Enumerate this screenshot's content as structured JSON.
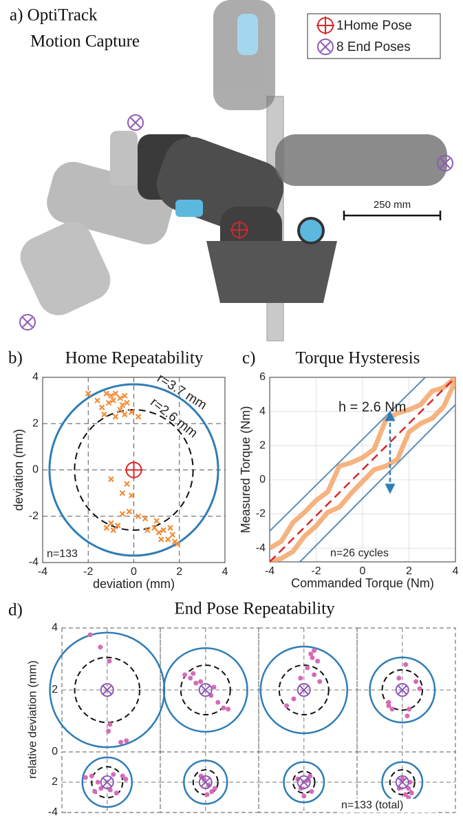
{
  "photo_panel": {
    "title_lines": [
      "a) OptiTrack",
      "Motion Capture"
    ],
    "legend": [
      "1Home Pose",
      "8 End Poses"
    ],
    "scale_bar": "250 mm"
  },
  "chart_data": [
    {
      "type": "scatter",
      "panel": "b)",
      "title": "Home Repeatability",
      "xlabel": "deviation (mm)",
      "ylabel": "deviation (mm)",
      "xlim": [
        -4,
        4
      ],
      "ylim": [
        -4,
        4
      ],
      "xticks": [
        -4,
        -2,
        0,
        2,
        4
      ],
      "yticks": [
        -4,
        -2,
        0,
        2,
        4
      ],
      "grid": true,
      "color": "#f28c38",
      "x": [
        -2.0,
        -1.6,
        -1.2,
        -1.0,
        -0.8,
        -0.6,
        -0.4,
        -0.3,
        -1.1,
        -0.9,
        -0.5,
        -0.1,
        -1.3,
        -0.8,
        -0.4,
        0.2,
        -0.6,
        -1.4,
        -0.3,
        -0.1,
        -1.0,
        -0.5,
        -1.2,
        -1.0,
        -0.7,
        -0.5,
        -0.2,
        0.2,
        0.5,
        0.9,
        1.1,
        1.3,
        1.5,
        1.7,
        1.8,
        1.9,
        0.6,
        1.2,
        -0.9,
        1.0,
        1.6
      ],
      "y": [
        3.3,
        3.0,
        3.3,
        3.2,
        3.3,
        3.1,
        3.2,
        2.9,
        2.9,
        3.0,
        2.8,
        2.5,
        2.4,
        2.3,
        2.4,
        2.3,
        2.6,
        2.7,
        -0.6,
        -1.1,
        -0.4,
        -1.0,
        -2.5,
        -2.3,
        -2.4,
        -1.9,
        -1.8,
        -2.0,
        -2.1,
        -2.5,
        -2.7,
        -2.6,
        -3.0,
        -2.8,
        -3.1,
        -3.2,
        -2.6,
        -3.0,
        -2.6,
        -2.2,
        -2.5
      ],
      "circles": [
        {
          "r": 3.7,
          "label": "r=3.7 mm",
          "color": "#2f7db6",
          "style": "solid"
        },
        {
          "r": 2.6,
          "label": "r=2.6 mm",
          "color": "#111111",
          "style": "dashed"
        }
      ],
      "annotation": "n=133"
    },
    {
      "type": "line",
      "panel": "c)",
      "title": "Torque Hysteresis",
      "xlabel": "Commanded Torque (Nm)",
      "ylabel": "Measured Torque (Nm)",
      "xlim": [
        -4,
        4
      ],
      "ylim": [
        -4.8,
        6
      ],
      "xticks": [
        -4,
        -2,
        0,
        2,
        4
      ],
      "yticks": [
        -4,
        -2,
        0,
        2,
        4,
        6
      ],
      "grid": true,
      "series": [
        {
          "color": "#f5a66a",
          "style": "band",
          "x": [
            -4,
            -3.5,
            -3,
            -2.5,
            -2,
            -1.5,
            -1,
            -0.5,
            0,
            0.5,
            1,
            1.5,
            2,
            2.5,
            3,
            3.5,
            4
          ],
          "values": [
            -4.0,
            -3.6,
            -2.5,
            -1.9,
            -1.2,
            -0.7,
            0.8,
            1.0,
            1.3,
            1.8,
            3.5,
            3.9,
            4.1,
            4.4,
            5.2,
            5.4,
            6.0
          ]
        },
        {
          "color": "#f5a66a",
          "style": "band",
          "x": [
            -4,
            -3.5,
            -3,
            -2.5,
            -2,
            -1.5,
            -1,
            -0.5,
            0,
            0.5,
            1,
            1.5,
            2,
            2.5,
            3,
            3.5,
            4
          ],
          "values": [
            -4.8,
            -4.6,
            -4.2,
            -3.3,
            -2.7,
            -1.9,
            -1.6,
            -0.8,
            -0.1,
            0.6,
            0.8,
            1.2,
            2.8,
            3.3,
            3.6,
            4.3,
            5.8
          ]
        },
        {
          "color": "#5b8db5",
          "style": "solid",
          "x": [
            -4,
            2.7
          ],
          "values": [
            -3,
            6
          ]
        },
        {
          "color": "#5b8db5",
          "style": "solid",
          "x": [
            -2.7,
            4
          ],
          "values": [
            -4.8,
            4.4
          ]
        },
        {
          "color": "#d62728",
          "style": "dashed",
          "x": [
            -4,
            4
          ],
          "values": [
            -4.8,
            6
          ]
        }
      ],
      "annotations": [
        "h = 2.6 Nm",
        "n=26 cycles"
      ]
    },
    {
      "type": "subplots",
      "panel": "d)",
      "title": "End Pose Repeatability",
      "ylabel": "relative deviation (mm)",
      "rows": [
        {
          "ylim": [
            0,
            4
          ],
          "yticks": [
            0,
            2,
            4
          ]
        },
        {
          "ylim": [
            -4,
            0
          ],
          "yticks": [
            {
              "value": -2,
              "label": "2"
            },
            -4
          ]
        }
      ],
      "point_color": "#d66bb8",
      "outer_color": "#2f7db6",
      "target_color": "#8e5bb5",
      "subplots": [
        {
          "r_outer": 1.85,
          "r_inner": 1.05,
          "x": [
            -0.55,
            -0.22,
            0.07,
            0.04,
            0.44,
            0.62,
            0.09
          ],
          "y": [
            1.78,
            1.38,
            0.93,
            -1.33,
            -1.69,
            -1.64,
            -1.11
          ]
        },
        {
          "r_outer": 1.35,
          "r_inner": 0.8,
          "x": [
            -0.67,
            -0.49,
            -0.31,
            -0.16,
            0.18,
            0.4,
            0.58,
            0.73,
            -0.4,
            0.27
          ],
          "y": [
            0.49,
            0.38,
            0.22,
            0.27,
            -0.18,
            -0.4,
            -0.58,
            -0.62,
            0.53,
            0.09
          ]
        },
        {
          "r_outer": 1.4,
          "r_inner": 0.8,
          "x": [
            0.33,
            0.27,
            0.11,
            -0.11,
            0.33,
            0.51,
            -0.56,
            0.44,
            -0.33,
            0.22
          ],
          "y": [
            1.27,
            1.04,
            0.71,
            0.38,
            0.49,
            0.27,
            -0.51,
            0.93,
            -0.29,
            1.16
          ]
        },
        {
          "r_outer": 1.05,
          "r_inner": 0.65,
          "x": [
            -0.44,
            -0.33,
            0.11,
            0.56,
            0.22,
            -0.11,
            0.44,
            -0.44,
            0.16
          ],
          "y": [
            -0.51,
            -0.62,
            0.82,
            0.04,
            -0.62,
            0.38,
            0.27,
            -0.4,
            -0.84
          ]
        },
        {
          "r_outer": 0.8,
          "r_inner": 0.5,
          "x": [
            -0.7,
            -0.5,
            -0.3,
            -0.2,
            0.1,
            0.3,
            0.5,
            0.6,
            -0.4,
            0.2
          ],
          "y": [
            0.15,
            0.2,
            0.0,
            -0.2,
            -0.25,
            -0.35,
            0.2,
            0.1,
            -0.3,
            0.25
          ]
        },
        {
          "r_outer": 0.7,
          "r_inner": 0.4,
          "x": [
            -0.15,
            -0.05,
            0.1,
            0.2,
            0.3,
            0.05
          ],
          "y": [
            0.2,
            0.1,
            -0.1,
            -0.3,
            -0.2,
            -0.4
          ]
        },
        {
          "r_outer": 0.65,
          "r_inner": 0.35,
          "x": [
            -0.2,
            -0.1,
            0.1,
            0.25,
            0.0,
            0.2
          ],
          "y": [
            0.1,
            -0.2,
            0.05,
            -0.3,
            -0.45,
            0.2
          ]
        },
        {
          "r_outer": 0.65,
          "r_inner": 0.4,
          "x": [
            0.0,
            0.2,
            0.3,
            0.1,
            0.2,
            -0.1,
            0.25
          ],
          "y": [
            0.1,
            -0.2,
            -0.35,
            -0.4,
            -0.5,
            -0.2,
            0.0
          ]
        }
      ],
      "annotation": "n=133 (total)"
    }
  ]
}
